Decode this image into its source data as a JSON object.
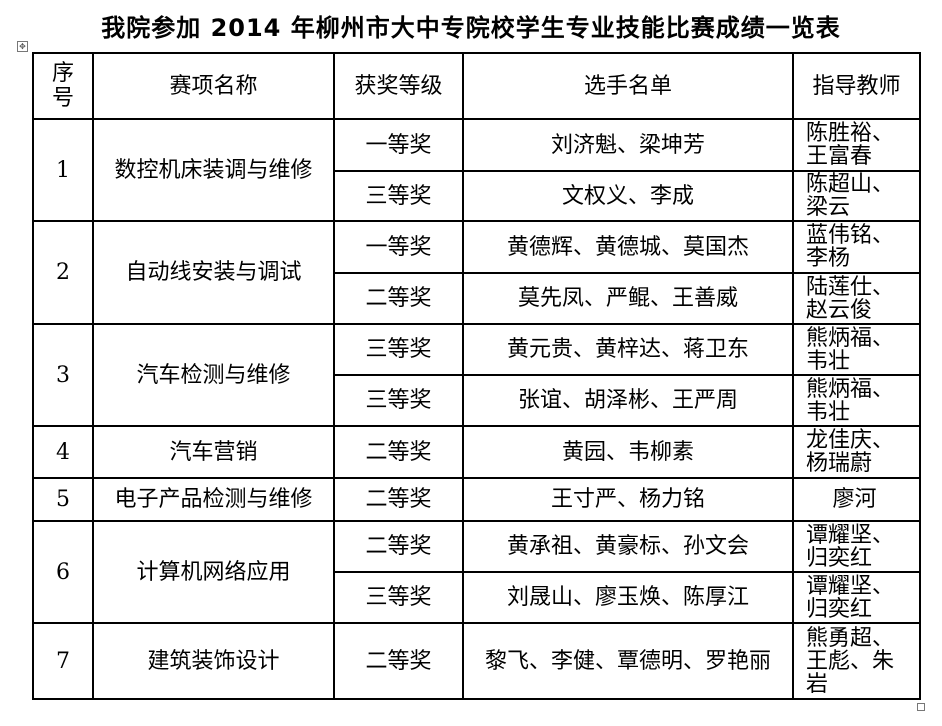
{
  "title": "我院参加 2014 年柳州市大中专院校学生专业技能比赛成绩一览表",
  "headers": {
    "index": "序号",
    "event": "赛项名称",
    "award": "获奖等级",
    "students": "选手名单",
    "teachers": "指导教师"
  },
  "groups": [
    {
      "index": "1",
      "event": "数控机床装调与维修",
      "entries": [
        {
          "award": "一等奖",
          "students": "刘济魁、梁坤芳",
          "teachers": "陈胜裕、王富春"
        },
        {
          "award": "三等奖",
          "students": "文权义、李成",
          "teachers": "陈超山、梁云"
        }
      ]
    },
    {
      "index": "2",
      "event": "自动线安装与调试",
      "entries": [
        {
          "award": "一等奖",
          "students": "黄德辉、黄德城、莫国杰",
          "teachers": "蓝伟铭、李杨"
        },
        {
          "award": "二等奖",
          "students": "莫先凤、严鲲、王善威",
          "teachers": "陆莲仕、赵云俊"
        }
      ]
    },
    {
      "index": "3",
      "event": "汽车检测与维修",
      "entries": [
        {
          "award": "三等奖",
          "students": "黄元贵、黄梓达、蒋卫东",
          "teachers": "熊炳福、韦壮"
        },
        {
          "award": "三等奖",
          "students": "张谊、胡泽彬、王严周",
          "teachers": "熊炳福、韦壮"
        }
      ]
    },
    {
      "index": "4",
      "event": "汽车营销",
      "entries": [
        {
          "award": "二等奖",
          "students": "黄园、韦柳素",
          "teachers": "龙佳庆、杨瑞蔚"
        }
      ]
    },
    {
      "index": "5",
      "event": "电子产品检测与维修",
      "entries": [
        {
          "award": "二等奖",
          "students": "王寸严、杨力铭",
          "teachers": "廖河"
        }
      ]
    },
    {
      "index": "6",
      "event": "计算机网络应用",
      "entries": [
        {
          "award": "二等奖",
          "students": "黄承祖、黄豪标、孙文会",
          "teachers": "谭耀坚、归奕红"
        },
        {
          "award": "三等奖",
          "students": "刘晟山、廖玉焕、陈厚江",
          "teachers": "谭耀坚、归奕红"
        }
      ]
    },
    {
      "index": "7",
      "event": "建筑装饰设计",
      "entries": [
        {
          "award": "二等奖",
          "students": "黎飞、李健、覃德明、罗艳丽",
          "teachers": "熊勇超、王彪、朱岩"
        }
      ]
    }
  ]
}
